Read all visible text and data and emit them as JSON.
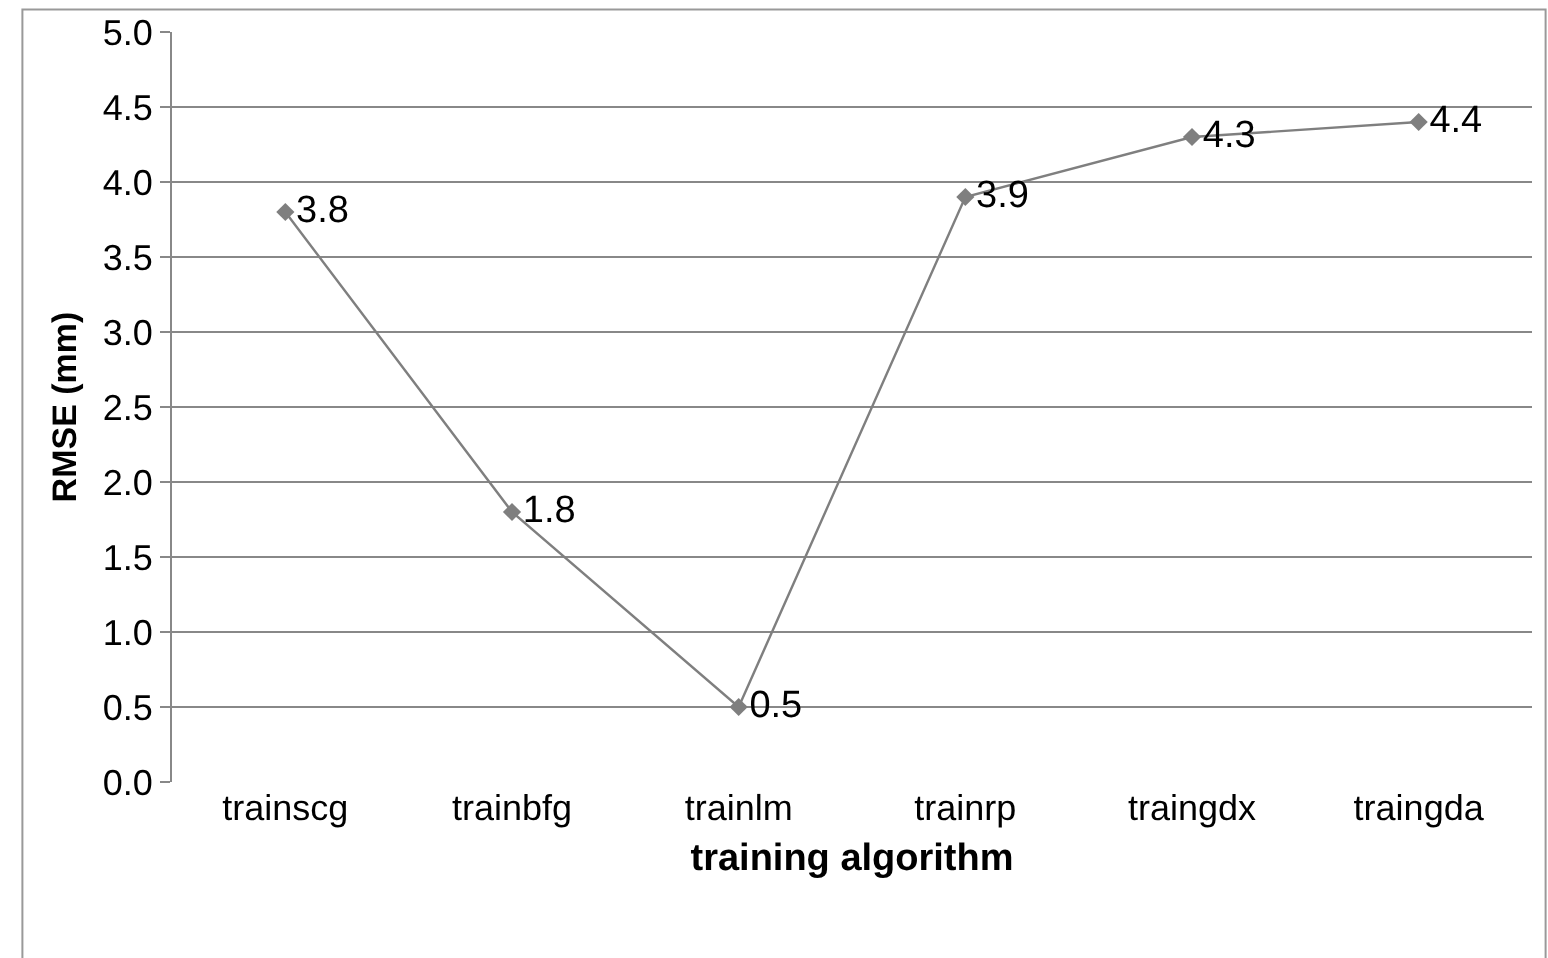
{
  "chart_data": {
    "type": "line",
    "xlabel": "training algorithm",
    "ylabel": "RMSE (mm)",
    "categories": [
      "trainscg",
      "trainbfg",
      "trainlm",
      "trainrp",
      "traingdx",
      "traingda"
    ],
    "values": [
      3.8,
      1.8,
      0.5,
      3.9,
      4.3,
      4.4
    ],
    "color": "#7f7f7f",
    "marker": "diamond",
    "line_style": "solid",
    "data_labels": true,
    "ylim": [
      0,
      5
    ],
    "yticks": [
      {
        "value": 0,
        "label": "0.0"
      },
      {
        "value": 0.5,
        "label": "0.5"
      },
      {
        "value": 1,
        "label": "1.0"
      },
      {
        "value": 1.5,
        "label": "1.5"
      },
      {
        "value": 2,
        "label": "2.0"
      },
      {
        "value": 2.5,
        "label": "2.5"
      },
      {
        "value": 3,
        "label": "3.0"
      },
      {
        "value": 3.5,
        "label": "3.5"
      },
      {
        "value": 4,
        "label": "4.0"
      },
      {
        "value": 4.5,
        "label": "4.5"
      },
      {
        "value": 5,
        "label": "5.0"
      }
    ],
    "grid": "y",
    "legend": false
  }
}
